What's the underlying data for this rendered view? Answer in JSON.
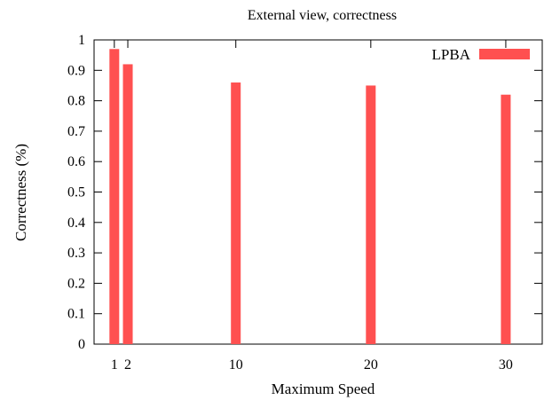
{
  "chart_data": {
    "type": "bar",
    "title": "External view, correctness",
    "xlabel": "Maximum Speed",
    "ylabel": "Correctness (%)",
    "x": [
      1,
      2,
      10,
      20,
      30
    ],
    "x_ticks": [
      1,
      2,
      10,
      20,
      30
    ],
    "x_tick_labels": [
      "1",
      "2",
      "10",
      "20",
      "30"
    ],
    "y_ticks": [
      0,
      0.1,
      0.2,
      0.3,
      0.4,
      0.5,
      0.6,
      0.7,
      0.8,
      0.9,
      1
    ],
    "y_tick_labels": [
      "0",
      "0.1",
      "0.2",
      "0.3",
      "0.4",
      "0.5",
      "0.6",
      "0.7",
      "0.8",
      "0.9",
      "1"
    ],
    "xlim": [
      -0.5,
      32.7
    ],
    "ylim": [
      0,
      1
    ],
    "series": [
      {
        "name": "LPBA",
        "values": [
          0.97,
          0.92,
          0.86,
          0.85,
          0.82
        ],
        "color": "#ff5050"
      }
    ],
    "legend_position": "top-right",
    "grid": false
  }
}
